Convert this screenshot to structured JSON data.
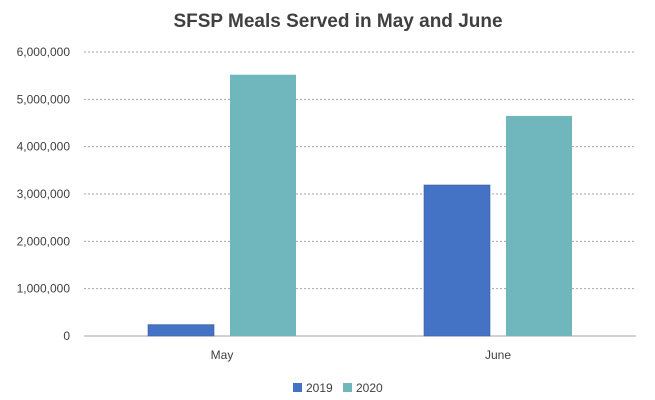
{
  "chart_data": {
    "type": "bar",
    "title": "SFSP Meals Served in May and June",
    "categories": [
      "May",
      "June"
    ],
    "series": [
      {
        "name": "2019",
        "values": [
          240000,
          3190000
        ],
        "color": "#4472c4"
      },
      {
        "name": "2020",
        "values": [
          5520000,
          4650000
        ],
        "color": "#70b7bd"
      }
    ],
    "ylim": [
      0,
      6000000
    ],
    "yticks": [
      "0",
      "1,000,000",
      "2,000,000",
      "3,000,000",
      "4,000,000",
      "5,000,000",
      "6,000,000"
    ],
    "ytick_values": [
      0,
      1000000,
      2000000,
      3000000,
      4000000,
      5000000,
      6000000
    ],
    "grid": true,
    "legend_position": "bottom",
    "xlabel": "",
    "ylabel": ""
  }
}
